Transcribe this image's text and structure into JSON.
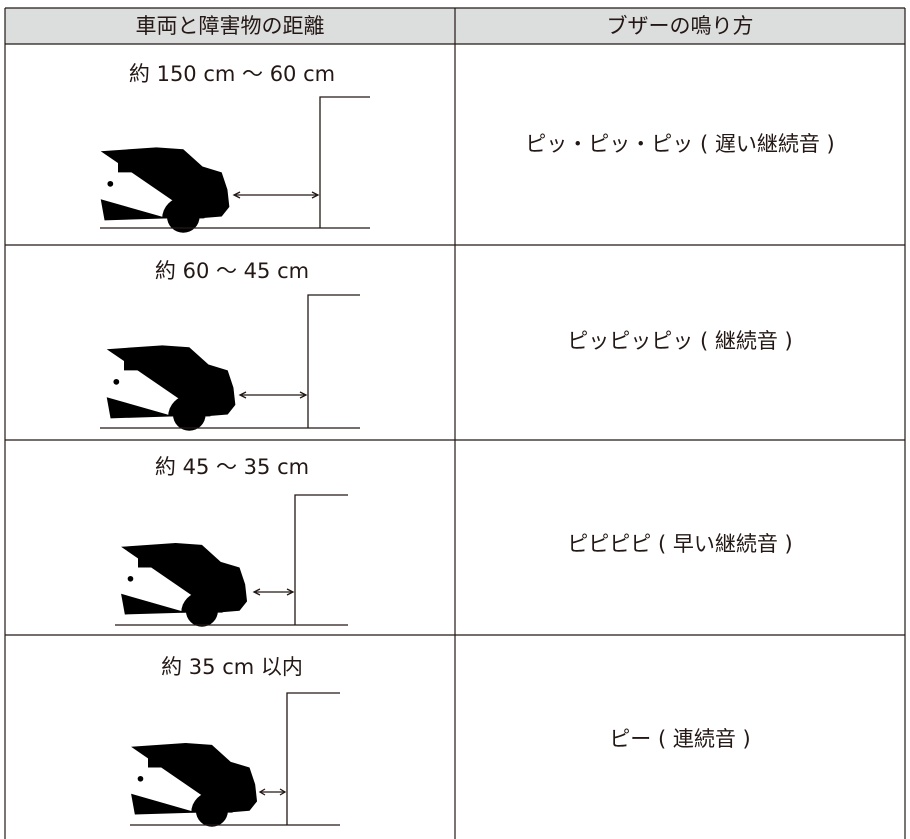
{
  "table": {
    "header": [
      "車両と障害物の距離",
      "ブザーの鳴り方"
    ],
    "rows": [
      [
        "約 150 cm ～ 60 cm",
        "ピッ・ピッ・ピッ ( 遅い継続音 )"
      ],
      [
        "約 60 ～ 45 cm",
        "ピッピッピッ ( 継続音 )"
      ],
      [
        "約 45 ～ 35 cm",
        "ピピピピ ( 早い継続音 )"
      ],
      [
        "約 35 cm 以内",
        "ピー ( 連続音 )"
      ]
    ]
  }
}
